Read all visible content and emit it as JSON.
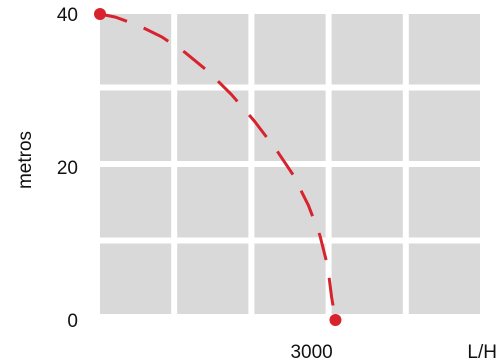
{
  "chart_data": {
    "type": "line",
    "title": "",
    "xlabel": "L/H",
    "ylabel": "metros",
    "xlim": [
      0,
      5000
    ],
    "ylim": [
      0,
      40
    ],
    "x_ticks": [
      {
        "value": 3000,
        "label": "3000"
      }
    ],
    "y_ticks": [
      {
        "value": 0,
        "label": "0"
      },
      {
        "value": 20,
        "label": "20"
      },
      {
        "value": 40,
        "label": "40"
      }
    ],
    "grid": true,
    "grid_columns": 5,
    "grid_rows": 4,
    "colors": {
      "background_cells": "#d9d9d9",
      "grid_lines": "#ffffff",
      "series": "#d7232d"
    },
    "line_style": "dashed",
    "series": [
      {
        "x": [
          0,
          200,
          500,
          800,
          1100,
          1400,
          1700,
          2000,
          2300,
          2500,
          2700,
          2850,
          2950,
          3000,
          3050
        ],
        "y": [
          40,
          39.6,
          38.5,
          37,
          35,
          32.5,
          29.5,
          26,
          22,
          19,
          15,
          11,
          7,
          3,
          0
        ],
        "markers": "endpoints"
      }
    ]
  }
}
